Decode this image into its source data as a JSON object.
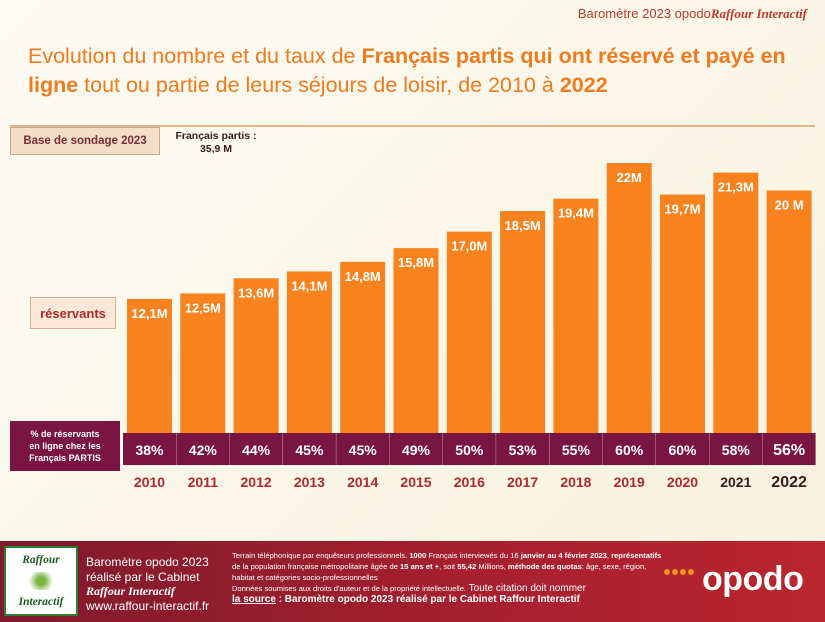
{
  "header": {
    "source_prefix": "Baromètre 2023 opodo",
    "source_brand": "Raffour Interactif"
  },
  "title": {
    "part1": "Evolution du nombre et du taux de ",
    "part2_bold": "Français partis qui ont réservé et payé en ligne",
    "part3": " tout ou partie de leurs séjours de loisir, de 2010 à ",
    "part4_bold": "2022"
  },
  "base": {
    "label": "Base de sondage 2023",
    "value_line1": "Français partis :",
    "value_line2": "35,9 M"
  },
  "labels": {
    "reservants": "réservants",
    "pct_line1": "% de réservants",
    "pct_line2": "en ligne chez les",
    "pct_line3": "Français PARTIS"
  },
  "colors": {
    "bar": "#f7821e",
    "band": "#7a1543",
    "year": "#b0282a",
    "accent": "#f07a1e"
  },
  "chart_data": {
    "type": "bar",
    "categories": [
      "2010",
      "2011",
      "2012",
      "2013",
      "2014",
      "2015",
      "2016",
      "2017",
      "2018",
      "2019",
      "2020",
      "2021",
      "2022"
    ],
    "values": [
      12.1,
      12.5,
      13.6,
      14.1,
      14.8,
      15.8,
      17.0,
      18.5,
      19.4,
      22.0,
      19.7,
      21.3,
      20.0
    ],
    "value_labels": [
      "12,1M",
      "12,5M",
      "13,6M",
      "14,1M",
      "14,8M",
      "15,8M",
      "17,0M",
      "18,5M",
      "19,4M",
      "22M",
      "19,7M",
      "21,3M",
      "20 M"
    ],
    "percentages": [
      "38%",
      "42%",
      "44%",
      "45%",
      "45%",
      "49%",
      "50%",
      "53%",
      "55%",
      "60%",
      "60%",
      "58%",
      "56%"
    ],
    "unit": "M"
  },
  "footer": {
    "logo_top": "Raffour",
    "logo_bottom": "Interactif",
    "line1": "Baromètre opodo 2023",
    "line2": "réalisé par le Cabinet",
    "line3": "Raffour Interactif",
    "line4": "www.raffour-interactif.fr",
    "method_a": "Terrain téléphonique par enquêteurs professionnels. ",
    "method_b": "1000",
    "method_c": " Français interviewés du 16 ",
    "method_d": "janvier au 4 février 2023",
    "method_e": ", ",
    "method_f": "représentatifs",
    "method_g": " de la population française métropolitaine âgée de ",
    "method_h": "15 ans et +",
    "method_i": ", soit ",
    "method_j": "55,42",
    "method_k": " Millions, ",
    "method_l": "méthode des quotas",
    "method_m": ": âge, sexe, région, habitat et catégories socio-professionnelles",
    "rights": "Données soumises aux droits d'auteur et de la propriété intellectuelle.",
    "cite": " Toute citation doit nommer",
    "source_word": "la source",
    "source_rest": " : Baromètre opodo 2023 réalisé par le Cabinet Raffour Interactif",
    "brand": "opodo"
  }
}
